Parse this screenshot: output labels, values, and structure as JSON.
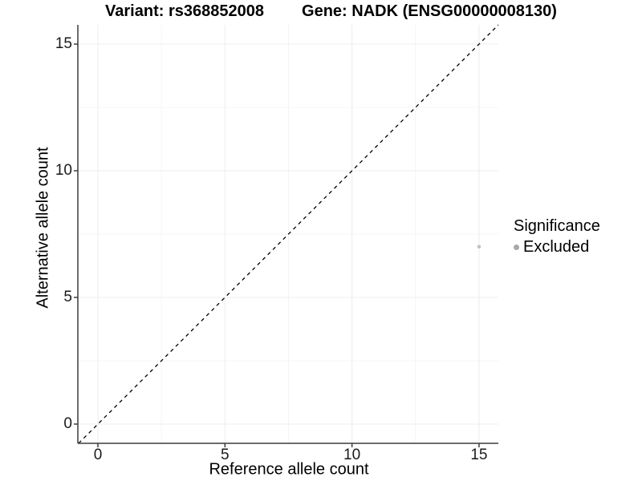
{
  "chart_data": {
    "type": "scatter",
    "title_left": "Variant: rs368852008",
    "title_right": "Gene: NADK (ENSG00000008130)",
    "xlabel": "Reference allele count",
    "ylabel": "Alternative allele count",
    "xlim": [
      -0.79,
      15.76
    ],
    "ylim": [
      -0.76,
      15.76
    ],
    "x_ticks": [
      0,
      5,
      10,
      15
    ],
    "y_ticks": [
      0,
      5,
      10,
      15
    ],
    "x_minor_ticks": [
      2.5,
      7.5,
      12.5
    ],
    "y_minor_ticks": [
      2.5,
      7.5,
      12.5
    ],
    "grid": "major+minor",
    "points": [
      {
        "x": 15,
        "y": 7,
        "significance": "Excluded",
        "color": "#c1c1c1"
      }
    ],
    "reference_line": {
      "kind": "identity y=x",
      "style": "dashed",
      "color": "#000000"
    },
    "legend": {
      "position": "right",
      "title": "Significance",
      "entries": [
        {
          "label": "Excluded",
          "color": "#a8a8a8"
        }
      ]
    }
  },
  "colors": {
    "background": "#ffffff",
    "grid_major": "#ececec",
    "grid_minor": "#f4f4f4",
    "axis_line": "#3c3c3c",
    "tick_mark": "#3c3c3c",
    "tick_text": "#1a1a1a",
    "title_text": "#000000"
  }
}
